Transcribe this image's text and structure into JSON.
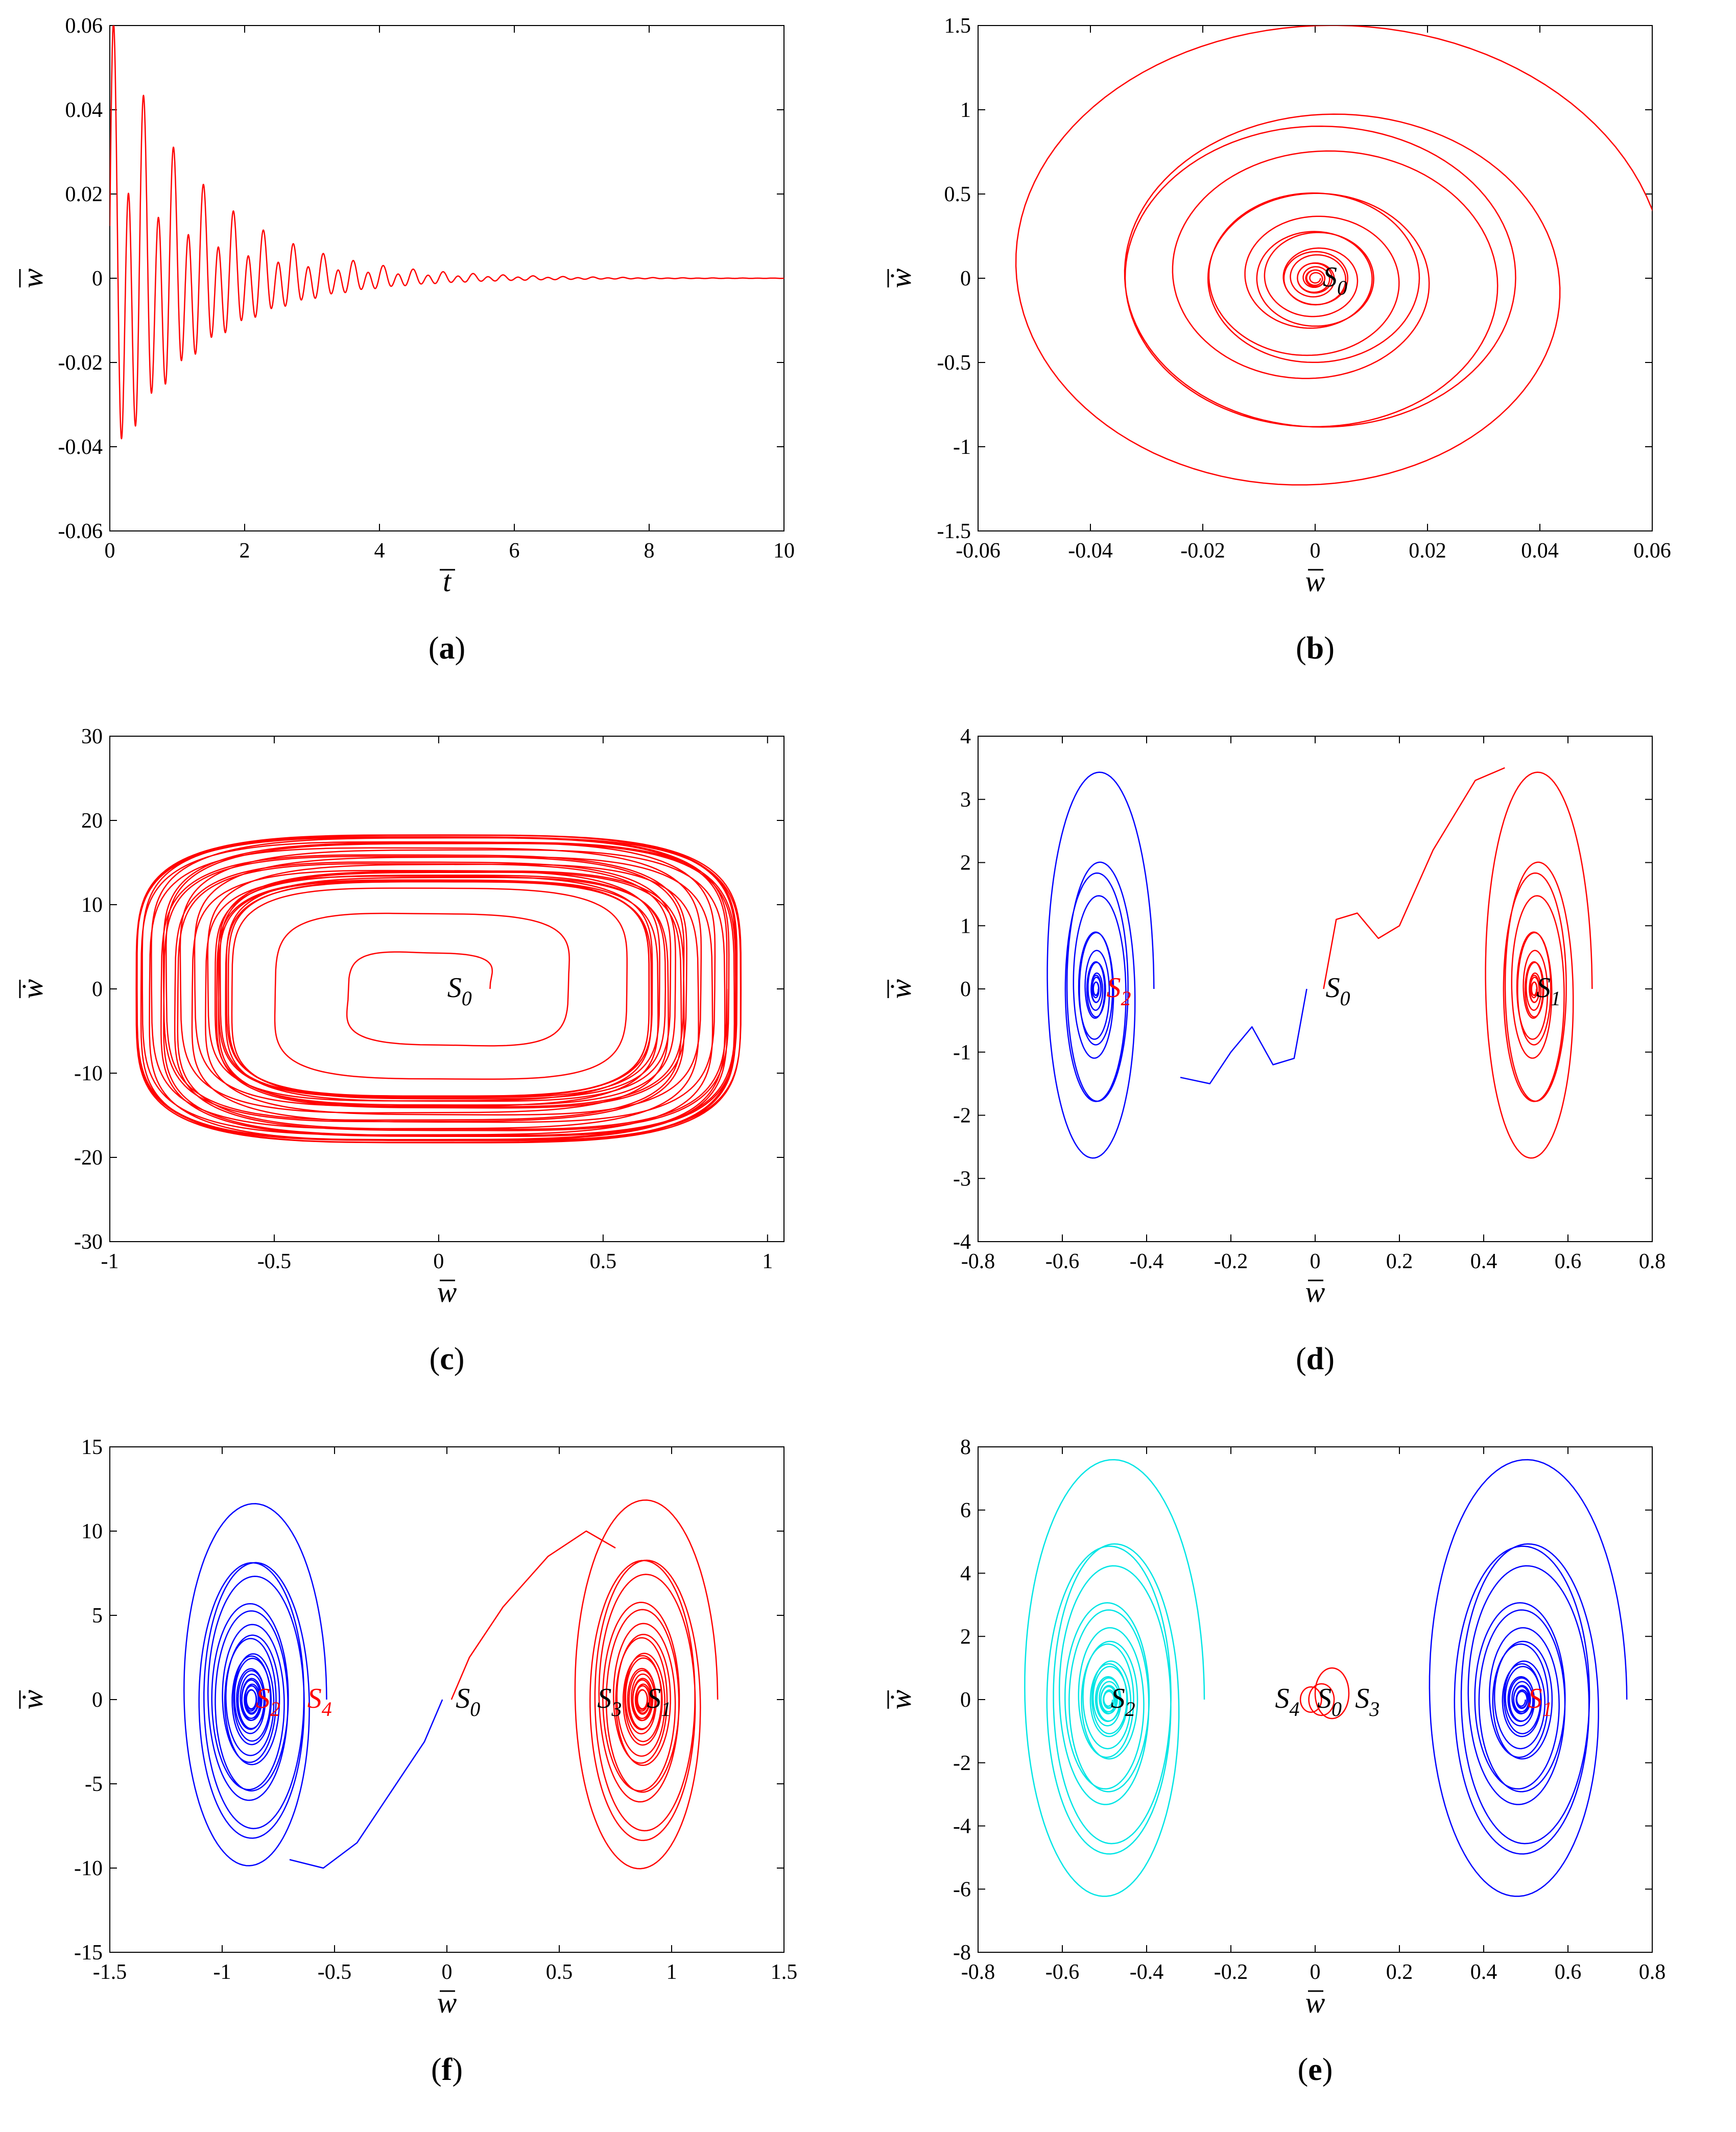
{
  "chart_data": [
    {
      "id": "a",
      "panel_label": "a",
      "type": "line",
      "xlabel": "t",
      "ylabel": "w",
      "xlim": [
        0,
        10
      ],
      "ylim": [
        -0.06,
        0.06
      ],
      "xticks": [
        "0",
        "2",
        "4",
        "6",
        "8",
        "10"
      ],
      "yticks": [
        "-0.06",
        "-0.04",
        "-0.02",
        "0",
        "0.02",
        "0.04",
        "0.06"
      ],
      "series": [
        {
          "name": "w(t)",
          "color": "#ff0000",
          "kind": "decay",
          "amplitude": 0.055,
          "decay_rate": 0.75,
          "frequency": 4.5,
          "t_end": 10
        }
      ],
      "annotations": []
    },
    {
      "id": "b",
      "panel_label": "b",
      "type": "line",
      "xlabel": "w",
      "ylabel": "ẇ",
      "xlim": [
        -0.06,
        0.06
      ],
      "ylim": [
        -1.5,
        1.5
      ],
      "xticks": [
        "-0.06",
        "-0.04",
        "-0.02",
        "0",
        "0.02",
        "0.04",
        "0.06"
      ],
      "yticks": [
        "-1.5",
        "-1",
        "-0.5",
        "0",
        "0.5",
        "1",
        "1.5"
      ],
      "series": [
        {
          "name": "trajectory",
          "color": "#ff0000",
          "kind": "spiral",
          "cx": 0,
          "cy": 0,
          "rx0": 0.056,
          "ry0": 1.42,
          "rx1": 0.001,
          "ry1": 0.03,
          "turns": 18,
          "wobble": 0.12
        }
      ],
      "annotations": [
        {
          "text": "S",
          "sub": "0",
          "x": 0.001,
          "y": 0.0,
          "color": "#000000"
        }
      ]
    },
    {
      "id": "c",
      "panel_label": "c",
      "type": "line",
      "xlabel": "w",
      "ylabel": "ẇ",
      "xlim": [
        -1,
        1.05
      ],
      "ylim": [
        -30,
        30
      ],
      "xticks": [
        "-1",
        "-0.5",
        "0",
        "0.5",
        "1"
      ],
      "yticks": [
        "-30",
        "-20",
        "-10",
        "0",
        "10",
        "20",
        "30"
      ],
      "series": [
        {
          "name": "trajectory",
          "color": "#ff0000",
          "kind": "limit-cycle",
          "cx": 0,
          "cy": 0,
          "rx": 0.78,
          "ry": 15.5,
          "turns": 30,
          "spread": 0.18
        }
      ],
      "annotations": [
        {
          "text": "S",
          "sub": "0",
          "x": 0.02,
          "y": 0.0,
          "color": "#000000"
        }
      ]
    },
    {
      "id": "d",
      "panel_label": "d",
      "type": "line",
      "xlabel": "w",
      "ylabel": "ẇ",
      "xlim": [
        -0.8,
        0.8
      ],
      "ylim": [
        -4,
        4
      ],
      "xticks": [
        "-0.8",
        "-0.6",
        "-0.4",
        "-0.2",
        "0",
        "0.2",
        "0.4",
        "0.6",
        "0.8"
      ],
      "yticks": [
        "-4",
        "-3",
        "-2",
        "-1",
        "0",
        "1",
        "2",
        "3",
        "4"
      ],
      "series": [
        {
          "name": "left",
          "color": "#0000ff",
          "kind": "spiral",
          "cx": -0.52,
          "cy": 0,
          "rx0": 0.12,
          "ry0": 3.2,
          "rx1": 0.005,
          "ry1": 0.08,
          "turns": 14,
          "wobble": 0.15
        },
        {
          "name": "left-path",
          "color": "#0000ff",
          "kind": "polyline",
          "points": [
            [
              -0.02,
              0
            ],
            [
              -0.05,
              -1.1
            ],
            [
              -0.1,
              -1.2
            ],
            [
              -0.15,
              -0.6
            ],
            [
              -0.2,
              -1.0
            ],
            [
              -0.25,
              -1.5
            ],
            [
              -0.32,
              -1.4
            ]
          ]
        },
        {
          "name": "right",
          "color": "#ff0000",
          "kind": "spiral",
          "cx": 0.52,
          "cy": 0,
          "rx0": 0.12,
          "ry0": 3.2,
          "rx1": 0.005,
          "ry1": 0.08,
          "turns": 14,
          "wobble": 0.15
        },
        {
          "name": "right-path",
          "color": "#ff0000",
          "kind": "polyline",
          "points": [
            [
              0.02,
              0
            ],
            [
              0.05,
              1.1
            ],
            [
              0.1,
              1.2
            ],
            [
              0.15,
              0.8
            ],
            [
              0.2,
              1.0
            ],
            [
              0.28,
              2.2
            ],
            [
              0.38,
              3.3
            ],
            [
              0.45,
              3.5
            ]
          ]
        }
      ],
      "annotations": [
        {
          "text": "S",
          "sub": "0",
          "x": 0.02,
          "y": 0.0,
          "color": "#000000"
        },
        {
          "text": "S",
          "sub": "2",
          "x": -0.5,
          "y": 0.0,
          "color": "#ff0000"
        },
        {
          "text": "S",
          "sub": "1",
          "x": 0.52,
          "y": 0.0,
          "color": "#000000"
        }
      ]
    },
    {
      "id": "f",
      "panel_label": "f",
      "type": "line",
      "xlabel": "w",
      "ylabel": "ẇ",
      "xlim": [
        -1.5,
        1.5
      ],
      "ylim": [
        -15,
        15
      ],
      "xticks": [
        "-1.5",
        "-1",
        "-0.5",
        "0",
        "0.5",
        "1",
        "1.5"
      ],
      "yticks": [
        "-15",
        "-10",
        "-5",
        "0",
        "5",
        "10",
        "15"
      ],
      "series": [
        {
          "name": "left",
          "color": "#0000ff",
          "kind": "spiral",
          "cx": -0.87,
          "cy": 0,
          "rx0": 0.3,
          "ry0": 10.8,
          "rx1": 0.02,
          "ry1": 0.5,
          "turns": 22,
          "wobble": 0.12
        },
        {
          "name": "left-path",
          "color": "#0000ff",
          "kind": "polyline",
          "points": [
            [
              -0.02,
              0
            ],
            [
              -0.1,
              -2.5
            ],
            [
              -0.25,
              -5.5
            ],
            [
              -0.4,
              -8.5
            ],
            [
              -0.55,
              -10.0
            ],
            [
              -0.7,
              -9.5
            ]
          ]
        },
        {
          "name": "right",
          "color": "#ff0000",
          "kind": "spiral",
          "cx": 0.87,
          "cy": 0,
          "rx0": 0.3,
          "ry0": 11.0,
          "rx1": 0.02,
          "ry1": 0.5,
          "turns": 22,
          "wobble": 0.12
        },
        {
          "name": "right-path",
          "color": "#ff0000",
          "kind": "polyline",
          "points": [
            [
              0.02,
              0
            ],
            [
              0.1,
              2.5
            ],
            [
              0.25,
              5.5
            ],
            [
              0.45,
              8.5
            ],
            [
              0.62,
              10.0
            ],
            [
              0.75,
              9.0
            ]
          ]
        }
      ],
      "annotations": [
        {
          "text": "S",
          "sub": "0",
          "x": 0.03,
          "y": 0.0,
          "color": "#000000"
        },
        {
          "text": "S",
          "sub": "2",
          "x": -0.86,
          "y": 0.0,
          "color": "#ff0000"
        },
        {
          "text": "S",
          "sub": "4",
          "x": -0.63,
          "y": 0.0,
          "color": "#ff0000"
        },
        {
          "text": "S",
          "sub": "3",
          "x": 0.66,
          "y": 0.0,
          "color": "#000000"
        },
        {
          "text": "S",
          "sub": "1",
          "x": 0.88,
          "y": 0.0,
          "color": "#000000"
        }
      ]
    },
    {
      "id": "e",
      "panel_label": "e",
      "type": "line",
      "xlabel": "w",
      "ylabel": "ẇ",
      "xlim": [
        -0.8,
        0.8
      ],
      "ylim": [
        -8,
        8
      ],
      "xticks": [
        "-0.8",
        "-0.6",
        "-0.4",
        "-0.2",
        "0",
        "0.2",
        "0.4",
        "0.6",
        "0.8"
      ],
      "yticks": [
        "-8",
        "-6",
        "-4",
        "-2",
        "0",
        "2",
        "4",
        "6",
        "8"
      ],
      "series": [
        {
          "name": "left",
          "color": "#00e5e5",
          "kind": "spiral",
          "cx": -0.49,
          "cy": 0,
          "rx0": 0.2,
          "ry0": 7.0,
          "rx1": 0.01,
          "ry1": 0.2,
          "turns": 20,
          "wobble": 0.14
        },
        {
          "name": "right",
          "color": "#0000ff",
          "kind": "spiral",
          "cx": 0.49,
          "cy": 0,
          "rx0": 0.22,
          "ry0": 7.0,
          "rx1": 0.01,
          "ry1": 0.2,
          "turns": 20,
          "wobble": 0.14
        },
        {
          "name": "center",
          "color": "#ff0000",
          "kind": "circles",
          "items": [
            [
              -0.01,
              0,
              0.025,
              0.4
            ],
            [
              0.015,
              0,
              0.03,
              0.5
            ],
            [
              0.04,
              0.2,
              0.04,
              0.8
            ]
          ]
        }
      ],
      "annotations": [
        {
          "text": "S",
          "sub": "4",
          "x": -0.1,
          "y": 0.0,
          "color": "#000000"
        },
        {
          "text": "S",
          "sub": "0",
          "x": 0.0,
          "y": 0.0,
          "color": "#000000"
        },
        {
          "text": "S",
          "sub": "3",
          "x": 0.09,
          "y": 0.0,
          "color": "#000000"
        },
        {
          "text": "S",
          "sub": "2",
          "x": -0.49,
          "y": 0.0,
          "color": "#000000"
        },
        {
          "text": "S",
          "sub": "1",
          "x": 0.5,
          "y": 0.0,
          "color": "#ff0000"
        }
      ]
    }
  ]
}
